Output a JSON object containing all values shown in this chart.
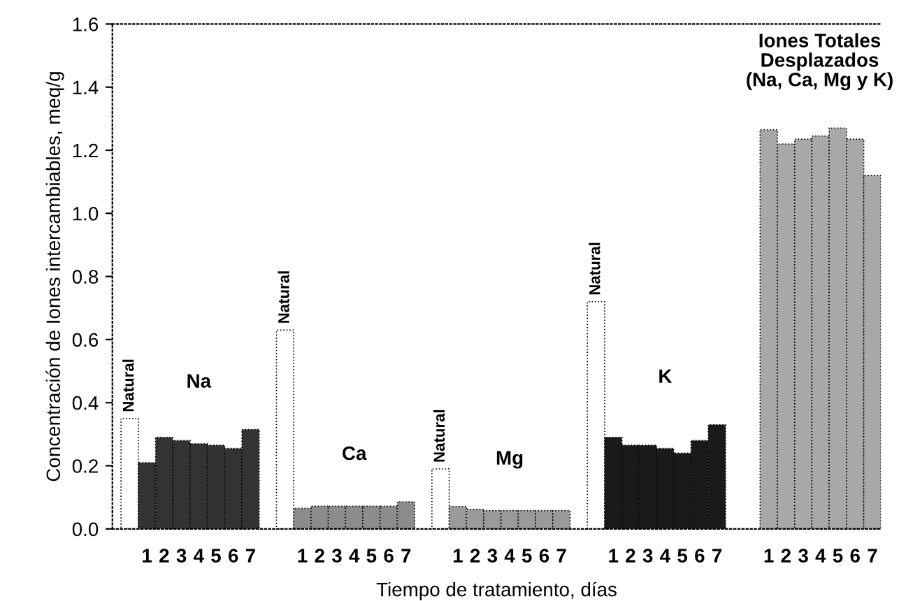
{
  "chart_data": {
    "type": "bar",
    "xlabel": "Tiempo de tratamiento, días",
    "ylabel": "Concentración de Iones intercambiables, meq/g",
    "categories": [
      null,
      "1",
      "2",
      "3",
      "4",
      "5",
      "6",
      "7",
      null,
      null,
      "1",
      "2",
      "3",
      "4",
      "5",
      "6",
      "7",
      null,
      null,
      "1",
      "2",
      "3",
      "4",
      "5",
      "6",
      "7",
      null,
      null,
      "1",
      "2",
      "3",
      "4",
      "5",
      "6",
      "7",
      null,
      null,
      "1",
      "2",
      "3",
      "4",
      "5",
      "6",
      "7"
    ],
    "values": [
      0.35,
      0.21,
      0.29,
      0.28,
      0.27,
      0.265,
      0.255,
      0.315,
      null,
      0.63,
      0.065,
      0.072,
      0.072,
      0.072,
      0.072,
      0.072,
      0.086,
      null,
      0.19,
      0.071,
      0.062,
      0.058,
      0.058,
      0.058,
      0.058,
      0.058,
      null,
      0.72,
      0.29,
      0.265,
      0.265,
      0.255,
      0.24,
      0.28,
      0.33,
      null,
      null,
      1.265,
      1.22,
      1.235,
      1.245,
      1.27,
      1.235,
      1.12
    ],
    "colors": [
      "#ffffff",
      "#333333",
      "#333333",
      "#333333",
      "#333333",
      "#333333",
      "#333333",
      "#333333",
      null,
      "#ffffff",
      "#8c8c8c",
      "#8c8c8c",
      "#8c8c8c",
      "#8c8c8c",
      "#8c8c8c",
      "#8c8c8c",
      "#8c8c8c",
      null,
      "#ffffff",
      "#9a9a9a",
      "#9a9a9a",
      "#9a9a9a",
      "#9a9a9a",
      "#9a9a9a",
      "#9a9a9a",
      "#9a9a9a",
      null,
      "#ffffff",
      "#1a1a1a",
      "#1a1a1a",
      "#1a1a1a",
      "#1a1a1a",
      "#1a1a1a",
      "#1a1a1a",
      "#1a1a1a",
      null,
      null,
      "#a8a8a8",
      "#a8a8a8",
      "#a8a8a8",
      "#a8a8a8",
      "#a8a8a8",
      "#a8a8a8",
      "#a8a8a8"
    ],
    "value_labels": [
      "Natural",
      null,
      null,
      null,
      null,
      null,
      null,
      null,
      null,
      "Natural",
      null,
      null,
      null,
      null,
      null,
      null,
      null,
      null,
      "Natural",
      null,
      null,
      null,
      null,
      null,
      null,
      null,
      null,
      "Natural",
      null,
      null,
      null,
      null,
      null,
      null,
      null,
      null,
      null,
      null,
      null,
      null,
      null,
      null,
      null,
      null
    ],
    "annotations": [
      "Na",
      "Ca",
      "Mg",
      "K",
      "Iones Totales\nDesplazados\n(Na, Ca, Mg y K)"
    ],
    "ylim": [
      0,
      1.6
    ],
    "yticks": [
      {
        "value": 0,
        "label": "0.0"
      },
      {
        "value": 0.2,
        "label": "0.2"
      },
      {
        "value": 0.4,
        "label": "0.4"
      },
      {
        "value": 0.6,
        "label": "0.6"
      },
      {
        "value": 0.8,
        "label": "0.8"
      },
      {
        "value": 1.0,
        "label": "1.0"
      },
      {
        "value": 1.2,
        "label": "1.2"
      },
      {
        "value": 1.4,
        "label": "1.4"
      },
      {
        "value": 1.6,
        "label": "1.6"
      }
    ],
    "grid": false,
    "legend": false
  }
}
